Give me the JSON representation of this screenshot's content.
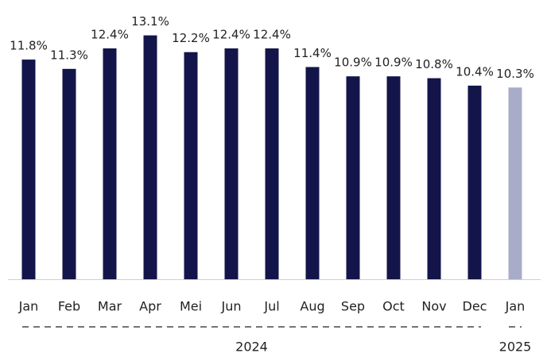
{
  "chart_data": {
    "type": "bar",
    "categories": [
      "Jan",
      "Feb",
      "Mar",
      "Apr",
      "Mei",
      "Jun",
      "Jul",
      "Aug",
      "Sep",
      "Oct",
      "Nov",
      "Dec",
      "Jan"
    ],
    "values": [
      11.8,
      11.3,
      12.4,
      13.1,
      12.2,
      12.4,
      12.4,
      11.4,
      10.9,
      10.9,
      10.8,
      10.4,
      10.3
    ],
    "value_labels": [
      "11.8%",
      "11.3%",
      "12.4%",
      "13.1%",
      "12.2%",
      "12.4%",
      "12.4%",
      "11.4%",
      "10.9%",
      "10.9%",
      "10.8%",
      "10.4%",
      "10.3%"
    ],
    "colors": [
      "#13154a",
      "#13154a",
      "#13154a",
      "#13154a",
      "#13154a",
      "#13154a",
      "#13154a",
      "#13154a",
      "#13154a",
      "#13154a",
      "#13154a",
      "#13154a",
      "#a9acc9"
    ],
    "groups": [
      {
        "label": "2024",
        "count": 12
      },
      {
        "label": "2025",
        "count": 1
      }
    ],
    "ylim": [
      0,
      15
    ]
  }
}
